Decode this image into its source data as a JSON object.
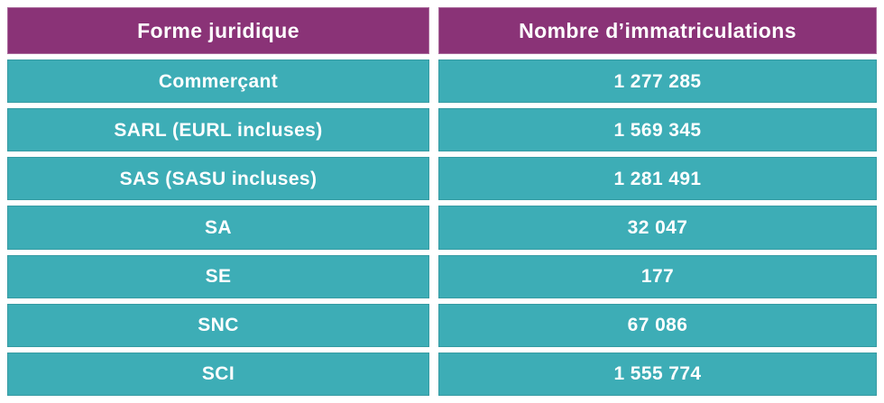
{
  "colors": {
    "header_bg": "#8A3377",
    "row_bg": "#3DADB6",
    "text": "#FFFFFF",
    "page_bg": "#FFFFFF"
  },
  "table": {
    "headers": [
      "Forme juridique",
      "Nombre d’immatriculations"
    ],
    "rows": [
      [
        "Commerçant",
        "1 277 285"
      ],
      [
        "SARL (EURL incluses)",
        "1 569 345"
      ],
      [
        "SAS (SASU incluses)",
        "1 281 491"
      ],
      [
        "SA",
        "32 047"
      ],
      [
        "SE",
        "177"
      ],
      [
        "SNC",
        "67 086"
      ],
      [
        "SCI",
        "1 555 774"
      ]
    ]
  },
  "chart_data": {
    "type": "table",
    "title": "",
    "columns": [
      "Forme juridique",
      "Nombre d’immatriculations"
    ],
    "rows": [
      [
        "Commerçant",
        "1 277 285"
      ],
      [
        "SARL (EURL incluses)",
        "1 569 345"
      ],
      [
        "SAS (SASU incluses)",
        "1 281 491"
      ],
      [
        "SA",
        "32 047"
      ],
      [
        "SE",
        "177"
      ],
      [
        "SNC",
        "67 086"
      ],
      [
        "SCI",
        "1 555 774"
      ]
    ],
    "values": {
      "Commerçant": 1277285,
      "SARL (EURL incluses)": 1569345,
      "SAS (SASU incluses)": 1281491,
      "SA": 32047,
      "SE": 177,
      "SNC": 67086,
      "SCI": 1555774
    },
    "legend_position": "none",
    "grid": false
  }
}
